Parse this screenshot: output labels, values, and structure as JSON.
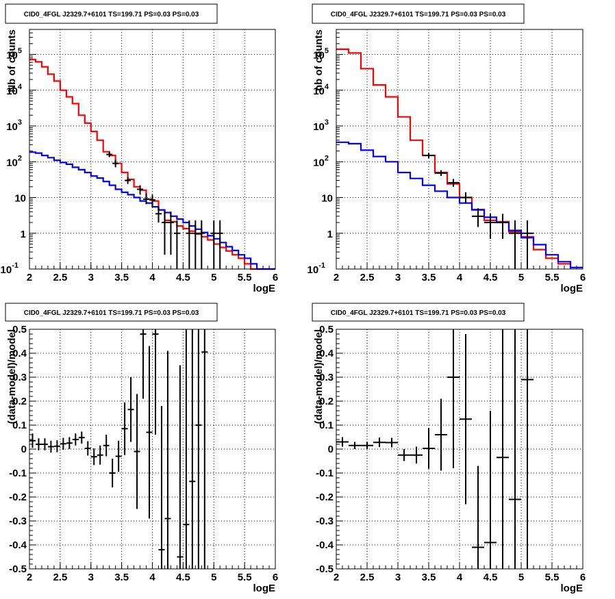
{
  "chart_data": [
    {
      "type": "line",
      "title": "CID0_4FGL J2329.7+6101 TS=199.71 PS=0.03 PS=0.03",
      "xlabel": "logE",
      "ylabel": "Nb of counts",
      "xlim": [
        2,
        6
      ],
      "ylim": [
        0.1,
        500000
      ],
      "log_y": true,
      "grid": true,
      "x_ticks": [
        "2",
        "2.5",
        "3",
        "3.5",
        "4",
        "4.5",
        "5",
        "5.5",
        "6"
      ],
      "y_ticks": [
        {
          "v": 0.1,
          "base": "10",
          "exp": "-1"
        },
        {
          "v": 1,
          "base": "1",
          "exp": ""
        },
        {
          "v": 10,
          "base": "10",
          "exp": ""
        },
        {
          "v": 100,
          "base": "10",
          "exp": "2"
        },
        {
          "v": 1000,
          "base": "10",
          "exp": "3"
        },
        {
          "v": 10000,
          "base": "10",
          "exp": "4"
        },
        {
          "v": 100000,
          "base": "10",
          "exp": "5"
        }
      ],
      "bin_edges": [
        2,
        2.1,
        2.2,
        2.3,
        2.4,
        2.5,
        2.6,
        2.7,
        2.8,
        2.9,
        3,
        3.1,
        3.2,
        3.3,
        3.4,
        3.5,
        3.6,
        3.7,
        3.8,
        3.9,
        4,
        4.1,
        4.2,
        4.3,
        4.4,
        4.5,
        4.6,
        4.7,
        4.8,
        4.9,
        5,
        5.1,
        5.2,
        5.3,
        5.4,
        5.5,
        5.6,
        5.7,
        5.8,
        5.9,
        6
      ],
      "series": [
        {
          "color": "#ff0000",
          "values": [
            72000,
            62000,
            45000,
            28000,
            18000,
            10000,
            6500,
            4200,
            2000,
            1200,
            700,
            400,
            190,
            150,
            90,
            50,
            32,
            20,
            16,
            9,
            8,
            4.5,
            2.3,
            2.1,
            1.6,
            1.35,
            1.15,
            0.95,
            0.8,
            0.65,
            0.5,
            0.4,
            0.32,
            0.25,
            0.2,
            0.14,
            0.1,
            0.1,
            0.1,
            0.1
          ]
        },
        {
          "color": "#0000ff",
          "values": [
            185,
            175,
            150,
            130,
            110,
            95,
            85,
            70,
            60,
            50,
            40,
            35,
            28,
            22,
            17,
            14,
            12,
            10,
            8,
            7,
            5.5,
            4.5,
            3.8,
            3.0,
            2.5,
            2.0,
            1.6,
            1.3,
            1.05,
            0.85,
            0.7,
            0.55,
            0.42,
            0.33,
            0.25,
            0.2,
            0.14,
            0.1,
            0.1,
            0.1
          ]
        }
      ],
      "data_points": [
        {
          "x": 3.3,
          "y": 160,
          "ylo": 135,
          "yhi": 190
        },
        {
          "x": 3.4,
          "y": 90,
          "ylo": 70,
          "yhi": 112
        },
        {
          "x": 3.6,
          "y": 30,
          "ylo": 24,
          "yhi": 37
        },
        {
          "x": 3.8,
          "y": 17,
          "ylo": 12,
          "yhi": 22
        },
        {
          "x": 3.9,
          "y": 9,
          "ylo": 6.5,
          "yhi": 13
        },
        {
          "x": 4.0,
          "y": 8.5,
          "ylo": 5.5,
          "yhi": 12
        },
        {
          "x": 4.1,
          "y": 3.5,
          "ylo": 2.0,
          "yhi": 5.5
        },
        {
          "x": 4.2,
          "y": 2.0,
          "ylo": 0.25,
          "yhi": 4.0
        },
        {
          "x": 4.3,
          "y": 2.0,
          "ylo": 0.25,
          "yhi": 4.0
        },
        {
          "x": 4.4,
          "y": 1.0,
          "ylo": 0.1,
          "yhi": 2.3
        },
        {
          "x": 4.6,
          "y": 1.0,
          "ylo": 0.1,
          "yhi": 2.3
        },
        {
          "x": 4.7,
          "y": 1.0,
          "ylo": 0.1,
          "yhi": 2.3
        },
        {
          "x": 4.8,
          "y": 1.0,
          "ylo": 0.1,
          "yhi": 2.3
        },
        {
          "x": 5.0,
          "y": 1.0,
          "ylo": 0.1,
          "yhi": 2.3
        },
        {
          "x": 5.1,
          "y": 1.0,
          "ylo": 0.1,
          "yhi": 2.3
        }
      ]
    },
    {
      "type": "line",
      "title": "CID0_4FGL J2329.7+6101 TS=199.71 PS=0.03 PS=0.03",
      "xlabel": "logE",
      "ylabel": "nb of counts",
      "xlim": [
        2,
        6
      ],
      "ylim": [
        0.1,
        500000
      ],
      "log_y": true,
      "grid": true,
      "x_ticks": [
        "2",
        "2.5",
        "3",
        "3.5",
        "4",
        "4.5",
        "5",
        "5.5",
        "6"
      ],
      "y_ticks": [
        {
          "v": 0.1,
          "base": "10",
          "exp": "-1"
        },
        {
          "v": 1,
          "base": "1",
          "exp": ""
        },
        {
          "v": 10,
          "base": "10",
          "exp": ""
        },
        {
          "v": 100,
          "base": "10",
          "exp": "2"
        },
        {
          "v": 1000,
          "base": "10",
          "exp": "3"
        },
        {
          "v": 10000,
          "base": "10",
          "exp": "4"
        },
        {
          "v": 100000,
          "base": "10",
          "exp": "5"
        }
      ],
      "bin_edges": [
        2,
        2.2,
        2.4,
        2.6,
        2.8,
        3,
        3.2,
        3.4,
        3.6,
        3.8,
        4,
        4.2,
        4.4,
        4.6,
        4.8,
        5,
        5.2,
        5.4,
        5.6,
        5.8,
        6
      ],
      "series": [
        {
          "color": "#ff0000",
          "values": [
            140000,
            110000,
            40000,
            14000,
            6500,
            1800,
            400,
            150,
            50,
            24,
            10,
            4.6,
            2.3,
            2.1,
            1.1,
            0.8,
            0.35,
            0.2,
            0.14,
            0.11
          ]
        },
        {
          "color": "#0000ff",
          "values": [
            350,
            320,
            210,
            140,
            100,
            50,
            34,
            22,
            15,
            10,
            7,
            4.5,
            2.8,
            2.0,
            1.2,
            0.75,
            0.48,
            0.25,
            0.16,
            0.11
          ]
        }
      ],
      "data_points": [
        {
          "x": 3.5,
          "y": 150,
          "ylo": 125,
          "yhi": 175
        },
        {
          "x": 3.7,
          "y": 48,
          "ylo": 40,
          "yhi": 58
        },
        {
          "x": 3.9,
          "y": 26,
          "ylo": 20,
          "yhi": 33
        },
        {
          "x": 4.1,
          "y": 10,
          "ylo": 7,
          "yhi": 14
        },
        {
          "x": 4.3,
          "y": 3.0,
          "ylo": 1.5,
          "yhi": 5.0
        },
        {
          "x": 4.5,
          "y": 2.0,
          "ylo": 0.7,
          "yhi": 3.5
        },
        {
          "x": 4.7,
          "y": 2.0,
          "ylo": 0.7,
          "yhi": 3.5
        },
        {
          "x": 4.9,
          "y": 1.0,
          "ylo": 0.1,
          "yhi": 2.3
        },
        {
          "x": 5.1,
          "y": 1.0,
          "ylo": 0.1,
          "yhi": 2.3
        }
      ]
    },
    {
      "type": "scatter",
      "title": "CID0_4FGL J2329.7+6101 TS=199.71 PS=0.03 PS=0.03",
      "xlabel": "logE",
      "ylabel": "(data-model)/model",
      "xlim": [
        2,
        6
      ],
      "ylim": [
        -0.5,
        0.5
      ],
      "grid": true,
      "x_ticks": [
        "2",
        "2.5",
        "3",
        "3.5",
        "4",
        "4.5",
        "5",
        "5.5",
        "6"
      ],
      "y_ticks": [
        "-0.5",
        "-0.4",
        "-0.3",
        "-0.2",
        "-0.1",
        "0",
        "0.1",
        "0.2",
        "0.3",
        "0.4",
        "0.5"
      ],
      "bin_half_width": 0.05,
      "points": [
        {
          "x": 2.05,
          "y": 0.035,
          "err": 0.03
        },
        {
          "x": 2.15,
          "y": 0.02,
          "err": 0.025
        },
        {
          "x": 2.25,
          "y": 0.02,
          "err": 0.025
        },
        {
          "x": 2.35,
          "y": 0.01,
          "err": 0.025
        },
        {
          "x": 2.45,
          "y": 0.012,
          "err": 0.025
        },
        {
          "x": 2.55,
          "y": 0.022,
          "err": 0.025
        },
        {
          "x": 2.65,
          "y": 0.025,
          "err": 0.025
        },
        {
          "x": 2.75,
          "y": 0.04,
          "err": 0.025
        },
        {
          "x": 2.85,
          "y": 0.048,
          "err": 0.025
        },
        {
          "x": 2.95,
          "y": 0.003,
          "err": 0.03
        },
        {
          "x": 3.05,
          "y": -0.032,
          "err": 0.035
        },
        {
          "x": 3.15,
          "y": -0.025,
          "err": 0.04
        },
        {
          "x": 3.25,
          "y": 0.015,
          "err": 0.045
        },
        {
          "x": 3.35,
          "y": -0.1,
          "err": 0.06
        },
        {
          "x": 3.45,
          "y": -0.03,
          "err": 0.065
        },
        {
          "x": 3.55,
          "y": 0.085,
          "err": 0.11
        },
        {
          "x": 3.65,
          "y": 0.165,
          "err": 0.135
        },
        {
          "x": 3.75,
          "y": -0.01,
          "err": 0.24
        },
        {
          "x": 3.85,
          "y": 0.48,
          "err": 0.27
        },
        {
          "x": 3.95,
          "y": 0.07,
          "err": 0.36
        },
        {
          "x": 4.05,
          "y": 0.48,
          "err": 0.42
        },
        {
          "x": 4.15,
          "y": -0.42,
          "err": 0.6
        },
        {
          "x": 4.25,
          "y": -0.29,
          "err": 0.7
        },
        {
          "x": 4.55,
          "y": -0.315,
          "err": 0.9
        },
        {
          "x": 4.65,
          "y": -0.135,
          "err": 1.0
        },
        {
          "x": 4.75,
          "y": 0.1,
          "err": 1.1
        },
        {
          "x": 4.85,
          "y": 0.405,
          "err": 1.2
        },
        {
          "x": 4.45,
          "y": -0.45,
          "err": 0.8
        }
      ]
    },
    {
      "type": "scatter",
      "title": "CID0_4FGL J2329.7+6101 TS=199.71 PS=0.03 PS=0.03",
      "xlabel": "logE",
      "ylabel": "(data-model)/model",
      "xlim": [
        2,
        6
      ],
      "ylim": [
        -0.5,
        0.5
      ],
      "grid": true,
      "x_ticks": [
        "2",
        "2.5",
        "3",
        "3.5",
        "4",
        "4.5",
        "5",
        "5.5",
        "6"
      ],
      "y_ticks": [
        "-0.5",
        "-0.4",
        "-0.3",
        "-0.2",
        "-0.1",
        "0",
        "0.1",
        "0.2",
        "0.3",
        "0.4",
        "0.5"
      ],
      "bin_half_width": 0.1,
      "points": [
        {
          "x": 2.1,
          "y": 0.03,
          "err": 0.02
        },
        {
          "x": 2.3,
          "y": 0.015,
          "err": 0.015
        },
        {
          "x": 2.5,
          "y": 0.015,
          "err": 0.015
        },
        {
          "x": 2.7,
          "y": 0.028,
          "err": 0.02
        },
        {
          "x": 2.9,
          "y": 0.027,
          "err": 0.02
        },
        {
          "x": 3.1,
          "y": -0.025,
          "err": 0.025
        },
        {
          "x": 3.3,
          "y": -0.025,
          "err": 0.035
        },
        {
          "x": 3.5,
          "y": 0.003,
          "err": 0.085
        },
        {
          "x": 3.7,
          "y": 0.06,
          "err": 0.15
        },
        {
          "x": 3.9,
          "y": 0.3,
          "err": 0.38
        },
        {
          "x": 4.1,
          "y": 0.125,
          "err": 0.355
        },
        {
          "x": 4.3,
          "y": -0.41,
          "err": 0.34
        },
        {
          "x": 4.5,
          "y": -0.39,
          "err": 0.55
        },
        {
          "x": 4.7,
          "y": -0.035,
          "err": 0.9
        },
        {
          "x": 4.9,
          "y": -0.21,
          "err": 1.0
        },
        {
          "x": 5.1,
          "y": 0.29,
          "err": 1.0
        }
      ]
    }
  ]
}
